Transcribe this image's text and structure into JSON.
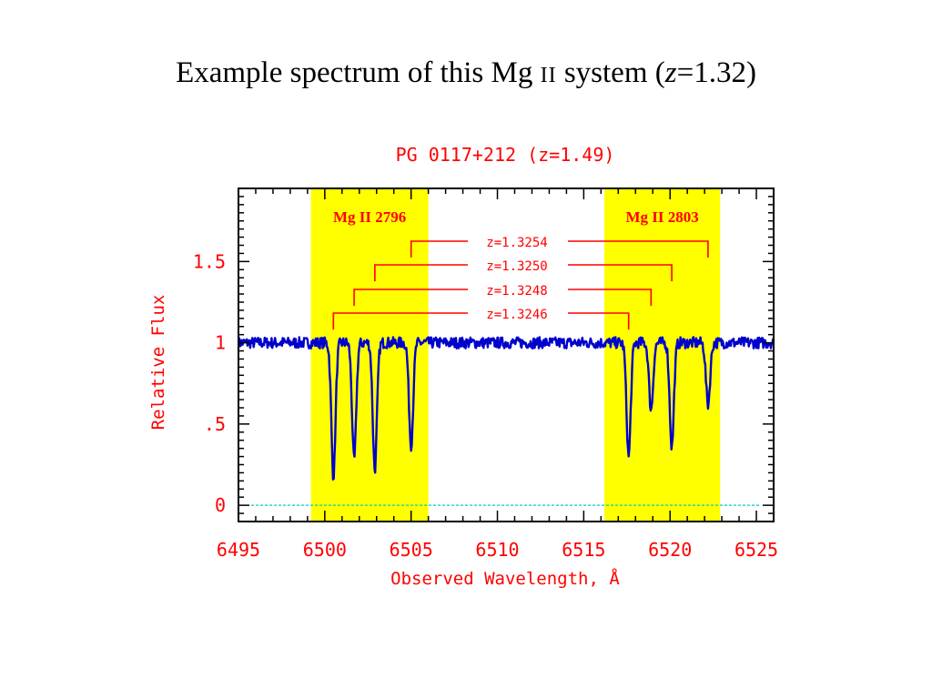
{
  "slide": {
    "title_prefix": "Example spectrum of this Mg ",
    "title_ion": "II",
    "title_mid": " system (",
    "title_var": "z",
    "title_suffix": "=1.32)"
  },
  "colors": {
    "label": "#ff0000",
    "spectrum": "#0000cc",
    "band": "#ffff00",
    "zero_line": "#00cccc",
    "axis": "#000000"
  },
  "chart_data": {
    "type": "line",
    "title": "PG 0117+212 (z=1.49)",
    "xlabel": "Observed Wavelength, Å",
    "ylabel": "Relative Flux",
    "xlim": [
      6495,
      6526
    ],
    "ylim": [
      -0.1,
      1.95
    ],
    "xticks": [
      6495,
      6500,
      6505,
      6510,
      6515,
      6520,
      6525
    ],
    "xtick_labels": [
      "6495",
      "6500",
      "6505",
      "6510",
      "6515",
      "6520",
      "6525"
    ],
    "yticks": [
      0,
      0.5,
      1,
      1.5
    ],
    "ytick_labels": [
      "0",
      ".5",
      "1",
      "1.5"
    ],
    "grid": false,
    "zero_line": 0,
    "bands": [
      {
        "label": "Mg II 2796",
        "x0": 6499.2,
        "x1": 6506.0
      },
      {
        "label": "Mg II 2803",
        "x0": 6516.2,
        "x1": 6522.9
      }
    ],
    "absorption_systems": [
      {
        "z_label": "z=1.3254",
        "x_2796": 6505.0,
        "x_2803": 6522.2,
        "depth_2796": 0.37,
        "depth_2803": 0.62
      },
      {
        "z_label": "z=1.3250",
        "x_2796": 6502.9,
        "x_2803": 6520.1,
        "depth_2796": 0.22,
        "depth_2803": 0.36
      },
      {
        "z_label": "z=1.3248",
        "x_2796": 6501.7,
        "x_2803": 6518.9,
        "depth_2796": 0.28,
        "depth_2803": 0.59
      },
      {
        "z_label": "z=1.3246",
        "x_2796": 6500.5,
        "x_2803": 6517.6,
        "depth_2796": 0.18,
        "depth_2803": 0.3
      }
    ],
    "continuum": 1.0,
    "series": [
      {
        "x": [
          6495,
          6500,
          6505,
          6510,
          6515,
          6520,
          6525,
          6526
        ],
        "values": [
          1.0,
          1.0,
          1.0,
          1.0,
          1.0,
          1.0,
          1.0,
          1.0
        ]
      }
    ]
  }
}
